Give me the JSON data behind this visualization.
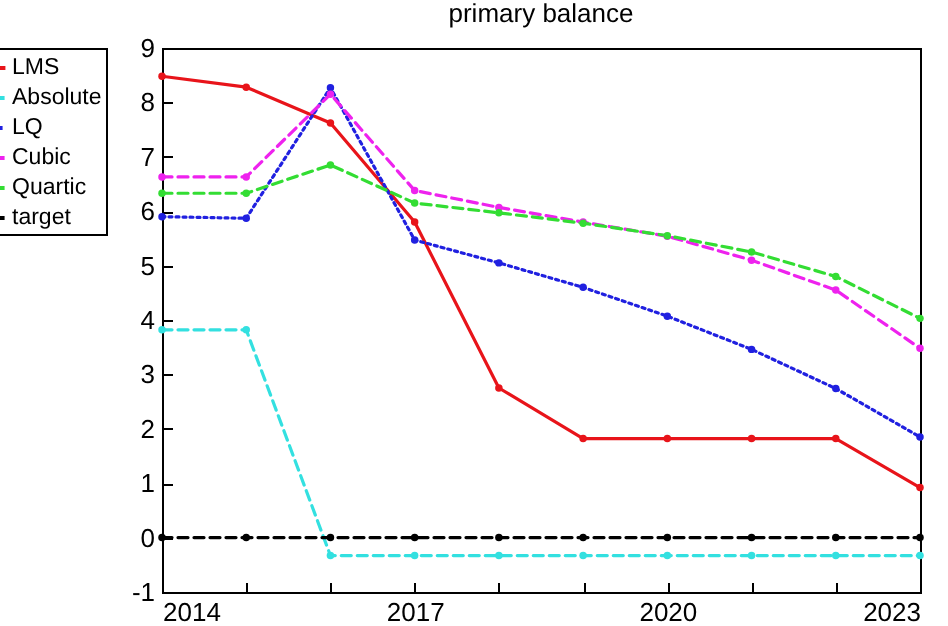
{
  "chart_data": {
    "type": "line",
    "title": "primary balance",
    "x": [
      2014,
      2015,
      2016,
      2017,
      2018,
      2019,
      2020,
      2021,
      2022,
      2023
    ],
    "series": [
      {
        "name": "LMS",
        "color": "#e8141a",
        "line_style": "solid",
        "values": [
          8.48,
          8.28,
          7.62,
          5.8,
          2.75,
          1.82,
          1.82,
          1.82,
          1.82,
          0.92
        ]
      },
      {
        "name": "Absolute",
        "color": "#33e0e0",
        "line_style": "dashed",
        "values": [
          3.82,
          3.82,
          -0.33,
          -0.33,
          -0.33,
          -0.33,
          -0.33,
          -0.33,
          -0.33,
          -0.33
        ]
      },
      {
        "name": "LQ",
        "color": "#2020e0",
        "line_style": "dotted",
        "values": [
          5.9,
          5.87,
          8.27,
          5.47,
          5.05,
          4.6,
          4.07,
          3.46,
          2.74,
          1.85
        ]
      },
      {
        "name": "Cubic",
        "color": "#ee22ee",
        "line_style": "dashed",
        "values": [
          6.63,
          6.63,
          8.15,
          6.38,
          6.07,
          5.8,
          5.54,
          5.1,
          4.55,
          3.48
        ]
      },
      {
        "name": "Quartic",
        "color": "#33dd33",
        "line_style": "dashed",
        "values": [
          6.33,
          6.33,
          6.85,
          6.15,
          5.97,
          5.78,
          5.55,
          5.25,
          4.8,
          4.03
        ]
      },
      {
        "name": "target",
        "color": "#000000",
        "line_style": "dashed",
        "values": [
          0,
          0,
          0,
          0,
          0,
          0,
          0,
          0,
          0,
          0
        ]
      }
    ],
    "xlim": [
      2014,
      2023
    ],
    "xticks": [
      2014,
      {
        "value": 2015,
        "label": null
      },
      {
        "value": 2016,
        "label": null
      },
      2017,
      {
        "value": 2018,
        "label": null
      },
      {
        "value": 2019,
        "label": null
      },
      2020,
      {
        "value": 2021,
        "label": null
      },
      {
        "value": 2022,
        "label": null
      },
      2023
    ],
    "ylim": [
      -1,
      9
    ],
    "yticks": [
      -1,
      0,
      1,
      2,
      3,
      4,
      5,
      6,
      7,
      8,
      9
    ],
    "grid": false,
    "legend": "left",
    "marker": "circle"
  }
}
